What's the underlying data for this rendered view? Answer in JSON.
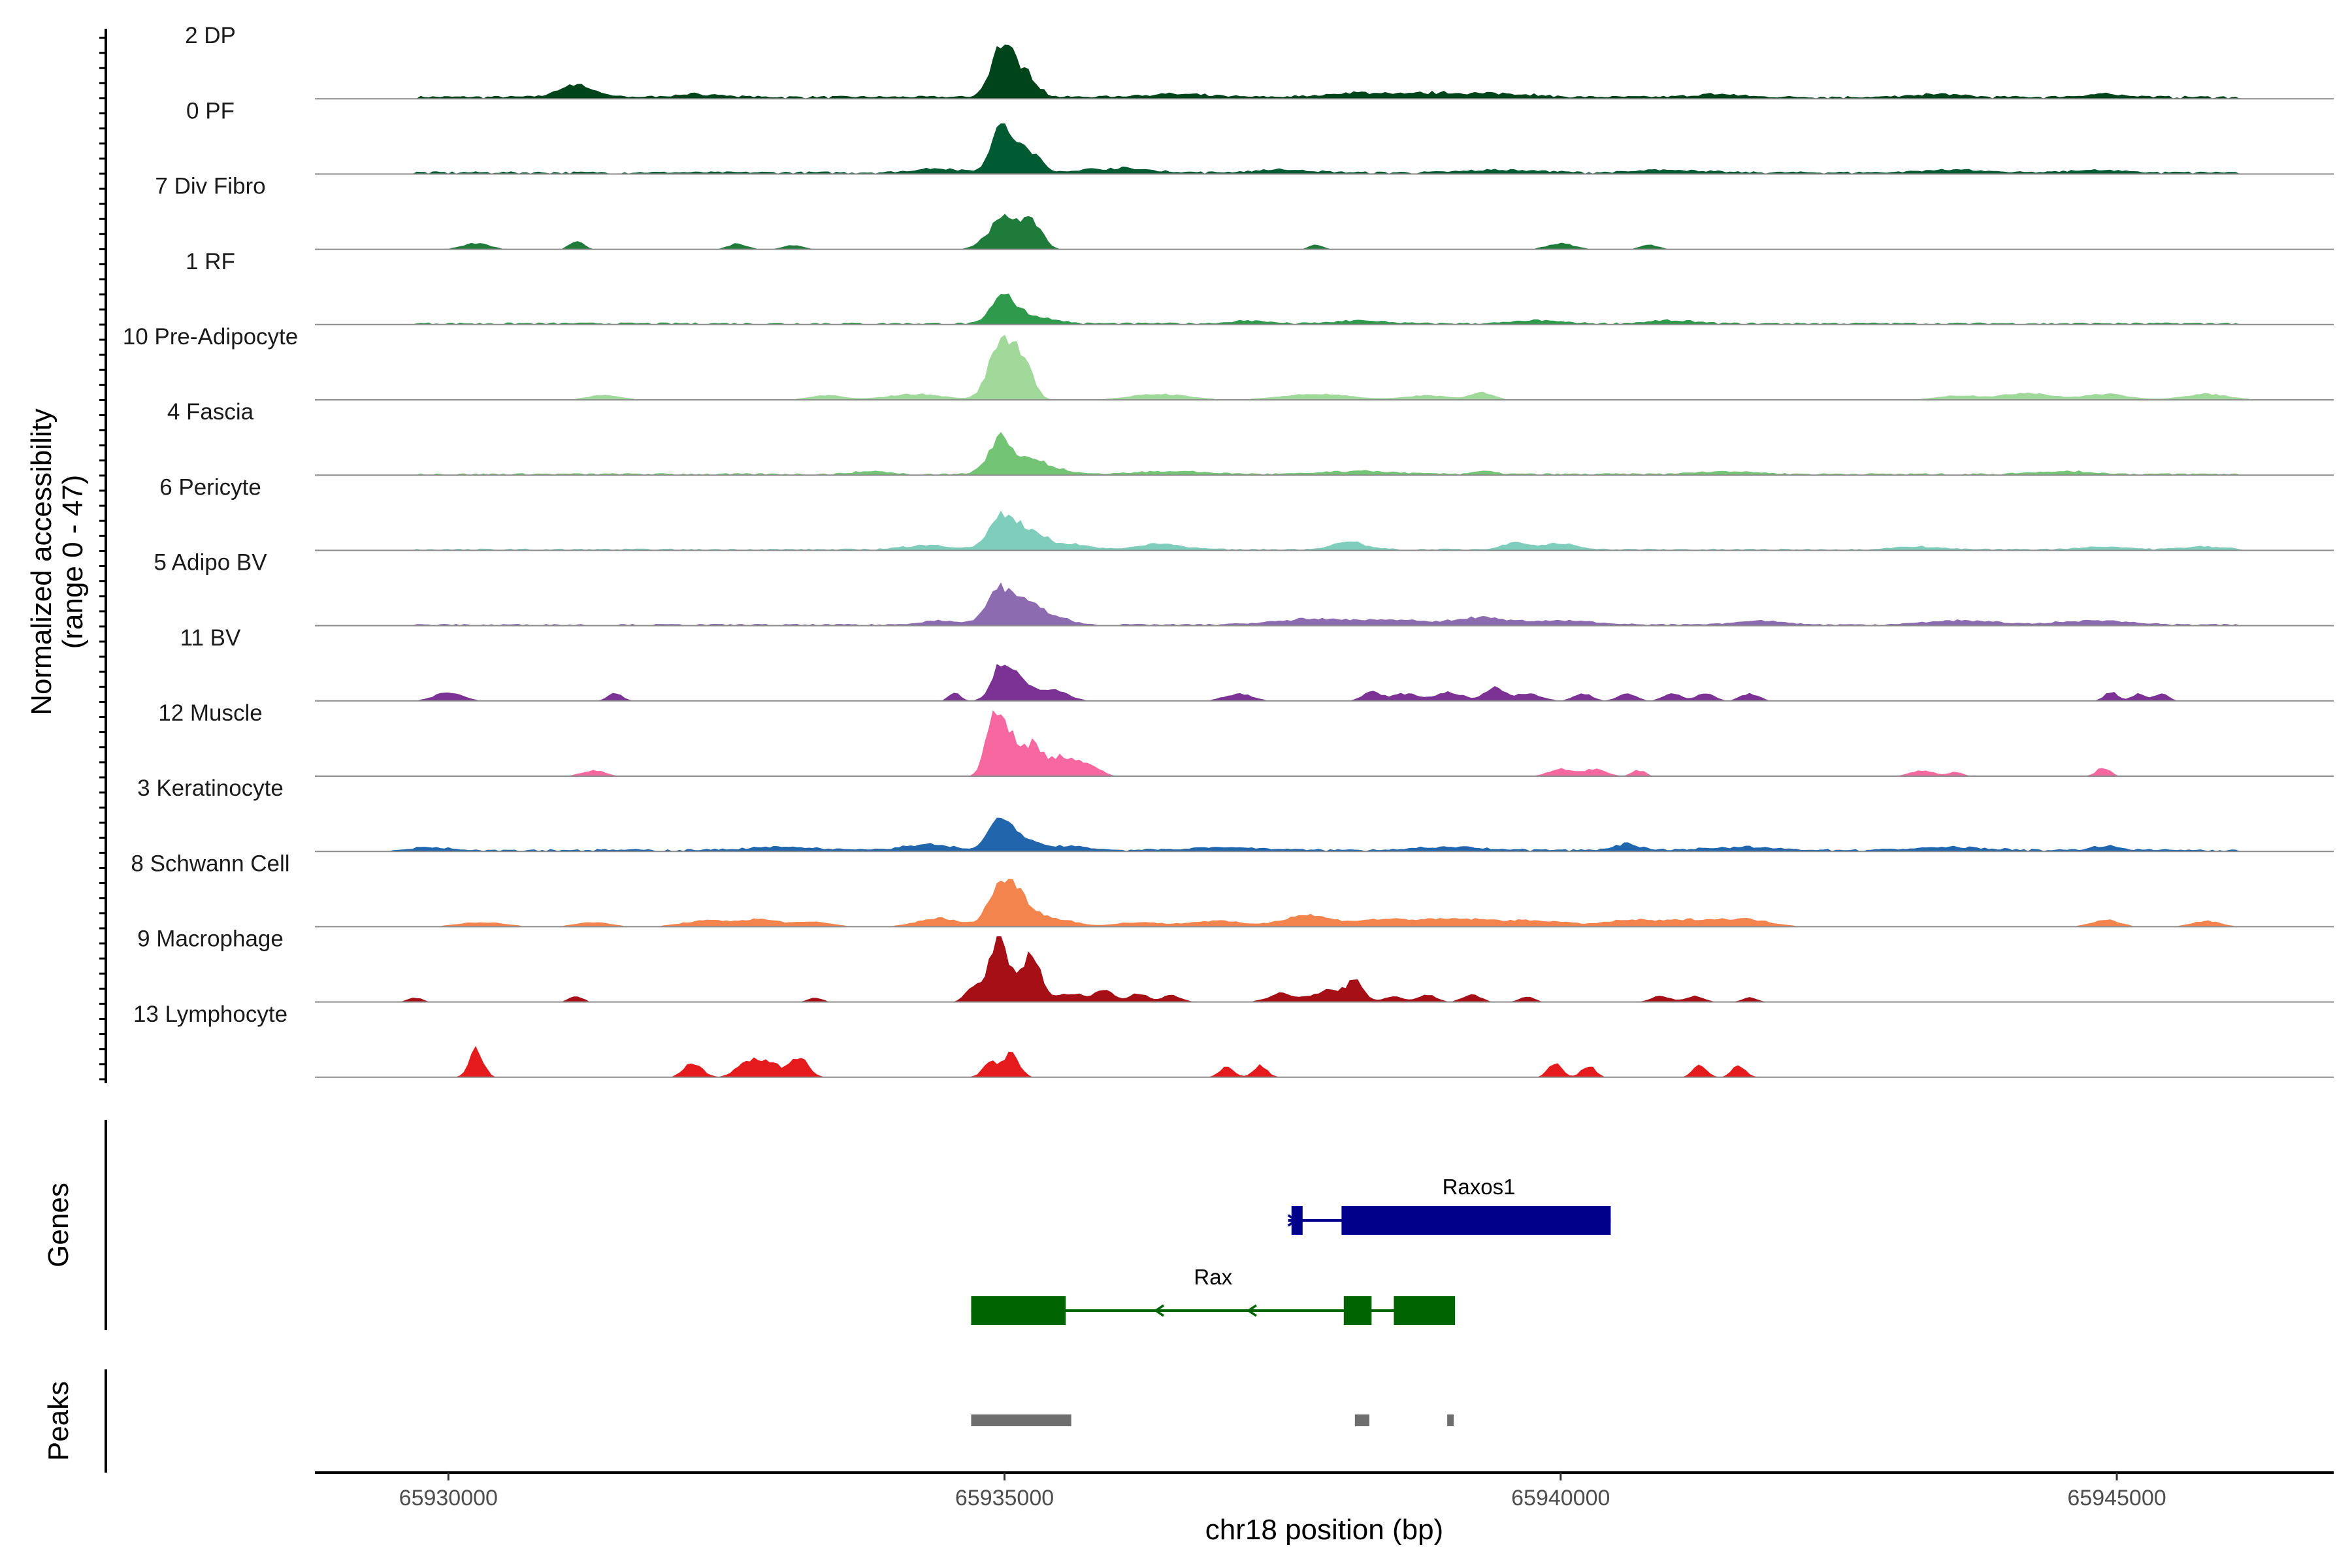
{
  "chart_data": {
    "type": "area",
    "title": "",
    "xlabel": "chr18 position (bp)",
    "ylabel": "Normalized accessibility",
    "ylabel_range": "(range 0 - 47)",
    "xlim": [
      65928800,
      65946950
    ],
    "ylim": [
      0,
      47
    ],
    "x_ticks": [
      65930000,
      65935000,
      65940000,
      65945000
    ],
    "x_tick_labels": [
      "65930000",
      "65935000",
      "65940000",
      "65945000"
    ],
    "series": [
      {
        "name": "2 DP",
        "color": "#00441b",
        "peaks": [
          [
            65931150,
            9,
            150
          ],
          [
            65934960,
            33,
            90
          ],
          [
            65935120,
            17,
            100
          ],
          [
            65935260,
            7,
            80
          ],
          [
            65932250,
            2,
            200
          ],
          [
            65936500,
            2,
            300
          ],
          [
            65938200,
            3,
            300
          ],
          [
            65939000,
            3,
            300
          ],
          [
            65939600,
            2,
            200
          ],
          [
            65941400,
            2,
            200
          ],
          [
            65943400,
            2,
            200
          ],
          [
            65944900,
            2,
            200
          ]
        ],
        "noise": [
          65929700,
          65946100,
          1.5
        ]
      },
      {
        "name": "0 PF",
        "color": "#005a32",
        "peaks": [
          [
            65934960,
            28,
            90
          ],
          [
            65935120,
            15,
            100
          ],
          [
            65935280,
            8,
            80
          ],
          [
            65934400,
            3,
            200
          ],
          [
            65936000,
            3,
            300
          ],
          [
            65937500,
            2,
            250
          ],
          [
            65939500,
            2,
            300
          ],
          [
            65941000,
            2,
            250
          ],
          [
            65943500,
            2,
            250
          ],
          [
            65944800,
            2,
            200
          ]
        ],
        "noise": [
          65929700,
          65946100,
          1.3
        ]
      },
      {
        "name": "7 Div Fibro",
        "color": "#1e7b3a",
        "peaks": [
          [
            65934950,
            17,
            120
          ],
          [
            65935150,
            17,
            110
          ],
          [
            65935300,
            10,
            70
          ],
          [
            65930250,
            4,
            120
          ],
          [
            65931150,
            6,
            60
          ],
          [
            65932600,
            4,
            80
          ],
          [
            65933100,
            3,
            80
          ],
          [
            65937800,
            3,
            60
          ],
          [
            65940000,
            4,
            120
          ],
          [
            65940800,
            3,
            80
          ]
        ],
        "noise": null
      },
      {
        "name": "1 RF",
        "color": "#2f9a4c",
        "peaks": [
          [
            65934980,
            22,
            90
          ],
          [
            65935180,
            6,
            100
          ],
          [
            65935400,
            3,
            120
          ],
          [
            65937200,
            2,
            150
          ],
          [
            65938200,
            2,
            200
          ],
          [
            65939800,
            2,
            200
          ],
          [
            65941000,
            2,
            200
          ]
        ],
        "noise": [
          65929700,
          65946100,
          1.0
        ]
      },
      {
        "name": "10 Pre-Adipocyte",
        "color": "#a1d99b",
        "peaks": [
          [
            65934980,
            45,
            110
          ],
          [
            65935180,
            25,
            80
          ],
          [
            65931400,
            3,
            150
          ],
          [
            65933400,
            3,
            150
          ],
          [
            65934200,
            4,
            250
          ],
          [
            65936400,
            4,
            250
          ],
          [
            65937800,
            4,
            300
          ],
          [
            65938800,
            3,
            200
          ],
          [
            65939300,
            5,
            100
          ],
          [
            65943600,
            3,
            200
          ],
          [
            65944200,
            5,
            200
          ],
          [
            65944900,
            4,
            200
          ],
          [
            65945800,
            4,
            200
          ]
        ],
        "noise": null
      },
      {
        "name": "4 Fascia",
        "color": "#74c476",
        "peaks": [
          [
            65934970,
            26,
            110
          ],
          [
            65935250,
            10,
            110
          ],
          [
            65935500,
            3,
            120
          ],
          [
            65933800,
            2,
            150
          ],
          [
            65936500,
            2,
            300
          ],
          [
            65938200,
            2,
            300
          ],
          [
            65939300,
            2,
            100
          ],
          [
            65941500,
            2,
            250
          ],
          [
            65944500,
            2,
            250
          ]
        ],
        "noise": [
          65929700,
          65946100,
          0.9
        ]
      },
      {
        "name": "6 Pericyte",
        "color": "#7fcdbb",
        "peaks": [
          [
            65934990,
            24,
            120
          ],
          [
            65935250,
            12,
            120
          ],
          [
            65935600,
            4,
            150
          ],
          [
            65934300,
            3,
            200
          ],
          [
            65936400,
            4,
            200
          ],
          [
            65938100,
            5,
            150
          ],
          [
            65939600,
            5,
            120
          ],
          [
            65940000,
            4,
            150
          ],
          [
            65943200,
            2,
            200
          ],
          [
            65944900,
            2,
            200
          ],
          [
            65945800,
            2,
            200
          ]
        ],
        "noise": [
          65929700,
          65946100,
          0.8
        ]
      },
      {
        "name": "5 Adipo BV",
        "color": "#8c6bb1",
        "peaks": [
          [
            65934980,
            26,
            130
          ],
          [
            65935250,
            12,
            120
          ],
          [
            65935500,
            4,
            120
          ],
          [
            65934400,
            3,
            150
          ],
          [
            65937800,
            4,
            350
          ],
          [
            65938600,
            3,
            300
          ],
          [
            65939300,
            5,
            200
          ],
          [
            65940000,
            3,
            300
          ],
          [
            65941800,
            3,
            200
          ],
          [
            65943600,
            3,
            300
          ],
          [
            65944800,
            3,
            300
          ]
        ],
        "noise": [
          65929700,
          65946100,
          0.8
        ]
      },
      {
        "name": "11 BV",
        "color": "#7b3294",
        "peaks": [
          [
            65934980,
            25,
            90
          ],
          [
            65935150,
            12,
            110
          ],
          [
            65935450,
            8,
            120
          ],
          [
            65934550,
            6,
            50
          ],
          [
            65930000,
            6,
            120
          ],
          [
            65931500,
            6,
            60
          ],
          [
            65937100,
            5,
            120
          ],
          [
            65938300,
            6,
            80
          ],
          [
            65938600,
            5,
            120
          ],
          [
            65939000,
            6,
            120
          ],
          [
            65939400,
            10,
            80
          ],
          [
            65939700,
            5,
            120
          ],
          [
            65940200,
            5,
            80
          ],
          [
            65940600,
            5,
            80
          ],
          [
            65941000,
            5,
            80
          ],
          [
            65941300,
            5,
            80
          ],
          [
            65941700,
            5,
            80
          ],
          [
            65944950,
            6,
            60
          ],
          [
            65945200,
            5,
            60
          ],
          [
            65945400,
            5,
            60
          ]
        ],
        "noise": null
      },
      {
        "name": "12 Muscle",
        "color": "#f768a1",
        "peaks": [
          [
            65934900,
            42,
            70
          ],
          [
            65935050,
            30,
            70
          ],
          [
            65935250,
            22,
            80
          ],
          [
            65935500,
            14,
            120
          ],
          [
            65935750,
            8,
            100
          ],
          [
            65931300,
            4,
            100
          ],
          [
            65940000,
            5,
            100
          ],
          [
            65940300,
            5,
            100
          ],
          [
            65940700,
            4,
            60
          ],
          [
            65943250,
            4,
            100
          ],
          [
            65943550,
            3,
            60
          ],
          [
            65944880,
            6,
            60
          ]
        ],
        "noise": null
      },
      {
        "name": "3 Keratinocyte",
        "color": "#2166ac",
        "peaks": [
          [
            65934980,
            24,
            110
          ],
          [
            65935250,
            5,
            100
          ],
          [
            65934300,
            4,
            200
          ],
          [
            65935600,
            3,
            150
          ],
          [
            65929800,
            2,
            200
          ],
          [
            65933000,
            2,
            300
          ],
          [
            65937000,
            2,
            300
          ],
          [
            65939000,
            2,
            300
          ],
          [
            65940600,
            4,
            120
          ],
          [
            65941600,
            2,
            300
          ],
          [
            65943500,
            2,
            300
          ],
          [
            65944900,
            3,
            120
          ]
        ],
        "noise": [
          65929700,
          65946100,
          1.2
        ]
      },
      {
        "name": "8 Schwann Cell",
        "color": "#f4844e",
        "peaks": [
          [
            65934990,
            32,
            120
          ],
          [
            65935200,
            12,
            120
          ],
          [
            65935500,
            5,
            150
          ],
          [
            65934400,
            6,
            180
          ],
          [
            65930300,
            3,
            200
          ],
          [
            65931300,
            3,
            150
          ],
          [
            65932300,
            4,
            200
          ],
          [
            65932800,
            5,
            200
          ],
          [
            65933300,
            3,
            150
          ],
          [
            65936200,
            3,
            200
          ],
          [
            65936900,
            4,
            250
          ],
          [
            65937700,
            8,
            200
          ],
          [
            65938400,
            5,
            300
          ],
          [
            65939100,
            5,
            300
          ],
          [
            65939800,
            4,
            300
          ],
          [
            65940600,
            4,
            200
          ],
          [
            65941200,
            5,
            300
          ],
          [
            65941700,
            4,
            200
          ],
          [
            65944900,
            5,
            120
          ],
          [
            65945800,
            4,
            120
          ]
        ],
        "noise": null
      },
      {
        "name": "9 Macrophage",
        "color": "#a50f15",
        "peaks": [
          [
            65934950,
            44,
            100
          ],
          [
            65935250,
            34,
            80
          ],
          [
            65934700,
            8,
            60
          ],
          [
            65935600,
            6,
            120
          ],
          [
            65935900,
            8,
            80
          ],
          [
            65936200,
            6,
            80
          ],
          [
            65936500,
            5,
            80
          ],
          [
            65937500,
            6,
            120
          ],
          [
            65937900,
            8,
            120
          ],
          [
            65938150,
            14,
            80
          ],
          [
            65938500,
            4,
            80
          ],
          [
            65938800,
            5,
            80
          ],
          [
            65939200,
            5,
            80
          ],
          [
            65939700,
            4,
            60
          ],
          [
            65940900,
            4,
            80
          ],
          [
            65941200,
            4,
            80
          ],
          [
            65941700,
            3,
            60
          ],
          [
            65929700,
            3,
            60
          ],
          [
            65931150,
            4,
            60
          ],
          [
            65933300,
            3,
            60
          ]
        ],
        "noise": null
      },
      {
        "name": "13 Lymphocyte",
        "color": "#e41a1c",
        "peaks": [
          [
            65930250,
            20,
            60
          ],
          [
            65932200,
            10,
            80
          ],
          [
            65932700,
            12,
            100
          ],
          [
            65932900,
            10,
            80
          ],
          [
            65933150,
            14,
            80
          ],
          [
            65934880,
            10,
            70
          ],
          [
            65935060,
            16,
            70
          ],
          [
            65937000,
            8,
            60
          ],
          [
            65937300,
            8,
            60
          ],
          [
            65939950,
            10,
            60
          ],
          [
            65940250,
            8,
            60
          ],
          [
            65941250,
            8,
            60
          ],
          [
            65941600,
            8,
            60
          ]
        ],
        "noise": null
      }
    ],
    "genes": [
      {
        "name": "Raxos1",
        "color": "#00008b",
        "strand": "+",
        "start": 65937550,
        "end": 65940450,
        "exons": [
          [
            65937580,
            65937680
          ],
          [
            65938030,
            65940450
          ]
        ],
        "row": 0
      },
      {
        "name": "Rax",
        "color": "#006400",
        "strand": "-",
        "start": 65934700,
        "end": 65939050,
        "exons": [
          [
            65934700,
            65935550
          ],
          [
            65938050,
            65938300
          ],
          [
            65938500,
            65939050
          ]
        ],
        "row": 1
      }
    ],
    "peaks_track": [
      [
        65934700,
        65935600
      ],
      [
        65938150,
        65938280
      ],
      [
        65938980,
        65939030
      ]
    ],
    "peaks_color": "#6e6e6e",
    "genes_label": "Genes",
    "peaks_label": "Peaks"
  }
}
